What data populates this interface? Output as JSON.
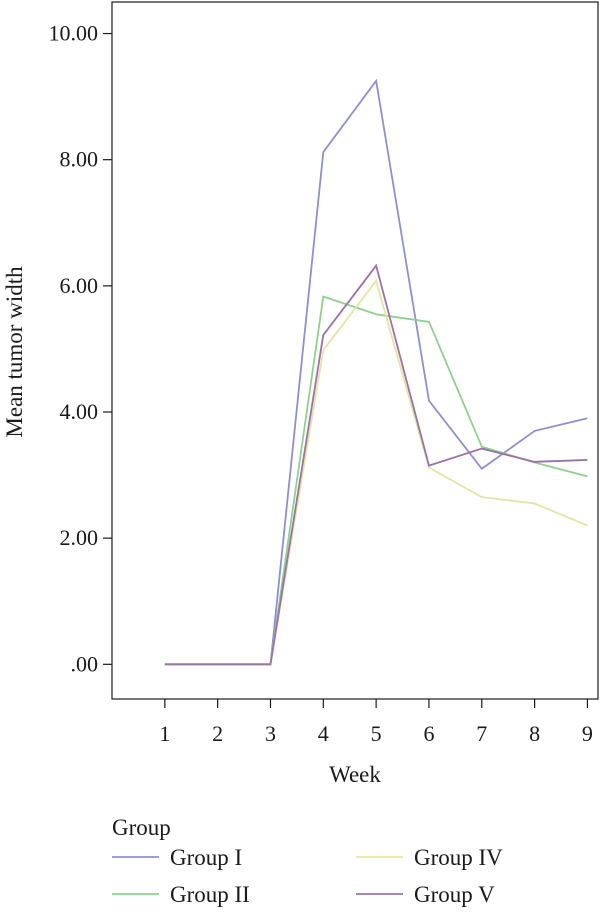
{
  "chart_data": {
    "type": "line",
    "xlabel": "Week",
    "ylabel": "Mean tumor width",
    "x": [
      1,
      2,
      3,
      4,
      5,
      6,
      7,
      8,
      9
    ],
    "x_tick_labels": [
      "1",
      "2",
      "3",
      "4",
      "5",
      "6",
      "7",
      "8",
      "9"
    ],
    "xlim": [
      0.0,
      9.2
    ],
    "ylim": [
      -0.55,
      10.5
    ],
    "y_ticks": [
      0,
      2,
      4,
      6,
      8,
      10
    ],
    "y_tick_labels": [
      ".00",
      "2.00",
      "4.00",
      "6.00",
      "8.00",
      "10.00"
    ],
    "grid": false,
    "legend": {
      "title": "Group",
      "placement": "bottom"
    },
    "series": [
      {
        "name": "Group I",
        "color": "#8f8fd0",
        "values": [
          0,
          0,
          0,
          8.12,
          9.25,
          4.18,
          3.1,
          3.7,
          3.9
        ]
      },
      {
        "name": "Group II",
        "color": "#8fd08f",
        "values": [
          0,
          0,
          0,
          5.83,
          5.55,
          5.43,
          3.45,
          3.2,
          2.98
        ]
      },
      {
        "name": "Group IV",
        "color": "#e4e4a6",
        "values": [
          0,
          0,
          0,
          4.98,
          6.08,
          3.12,
          2.65,
          2.55,
          2.2
        ]
      },
      {
        "name": "Group V",
        "color": "#9a72a8",
        "values": [
          0,
          0,
          0,
          5.22,
          6.32,
          3.15,
          3.42,
          3.21,
          3.24
        ]
      }
    ]
  }
}
